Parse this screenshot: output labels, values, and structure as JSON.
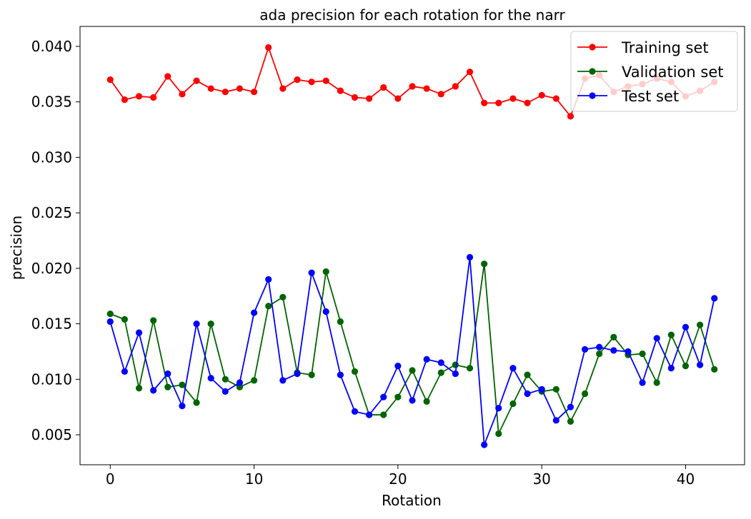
{
  "chart_data": {
    "type": "line",
    "title": "ada precision for each rotation for the narr",
    "xlabel": "Rotation",
    "ylabel": "precision",
    "xlim": [
      -2.1,
      44.1
    ],
    "ylim": [
      0.0023,
      0.0418
    ],
    "x_ticks": [
      0,
      10,
      20,
      30,
      40
    ],
    "x_tick_labels": [
      "0",
      "10",
      "20",
      "30",
      "40"
    ],
    "y_ticks": [
      0.005,
      0.01,
      0.015,
      0.02,
      0.025,
      0.03,
      0.035,
      0.04
    ],
    "y_tick_labels": [
      "0.005",
      "0.010",
      "0.015",
      "0.020",
      "0.025",
      "0.030",
      "0.035",
      "0.040"
    ],
    "grid": false,
    "legend_position": "top-right",
    "x": [
      0,
      1,
      2,
      3,
      4,
      5,
      6,
      7,
      8,
      9,
      10,
      11,
      12,
      13,
      14,
      15,
      16,
      17,
      18,
      19,
      20,
      21,
      22,
      23,
      24,
      25,
      26,
      27,
      28,
      29,
      30,
      31,
      32,
      33,
      34,
      35,
      36,
      37,
      38,
      39,
      40,
      41,
      42
    ],
    "series": [
      {
        "name": "Training set",
        "color": "#ff0000",
        "marker": "circle",
        "values": [
          0.037,
          0.0352,
          0.0355,
          0.0354,
          0.0373,
          0.0357,
          0.0369,
          0.0362,
          0.0359,
          0.0362,
          0.0359,
          0.0399,
          0.0362,
          0.037,
          0.0368,
          0.0369,
          0.036,
          0.0354,
          0.0353,
          0.0363,
          0.0353,
          0.0364,
          0.0362,
          0.0357,
          0.0364,
          0.0377,
          0.0349,
          0.0349,
          0.0353,
          0.0349,
          0.0356,
          0.0353,
          0.0337,
          0.0371,
          0.0374,
          0.0359,
          0.0364,
          0.0366,
          0.0371,
          0.0368,
          0.0355,
          0.036,
          0.0368
        ]
      },
      {
        "name": "Validation set",
        "color": "#006400",
        "marker": "circle",
        "values": [
          0.0159,
          0.0154,
          0.0092,
          0.0153,
          0.0093,
          0.0095,
          0.0079,
          0.015,
          0.01,
          0.0093,
          0.0099,
          0.0166,
          0.0174,
          0.0106,
          0.0104,
          0.0197,
          0.0152,
          0.0107,
          0.0068,
          0.0068,
          0.0084,
          0.0108,
          0.008,
          0.0106,
          0.0113,
          0.011,
          0.0204,
          0.0051,
          0.0078,
          0.0104,
          0.0089,
          0.0091,
          0.0062,
          0.0087,
          0.0123,
          0.0138,
          0.0122,
          0.0123,
          0.0097,
          0.014,
          0.0112,
          0.0149,
          0.0109
        ]
      },
      {
        "name": "Test set",
        "color": "#0000ff",
        "marker": "circle",
        "values": [
          0.0152,
          0.0107,
          0.0142,
          0.009,
          0.0105,
          0.0076,
          0.015,
          0.0101,
          0.0089,
          0.0097,
          0.016,
          0.019,
          0.0099,
          0.0105,
          0.0196,
          0.0161,
          0.0104,
          0.0071,
          0.0068,
          0.0084,
          0.0112,
          0.0081,
          0.0118,
          0.0115,
          0.0105,
          0.021,
          0.0041,
          0.0074,
          0.011,
          0.0087,
          0.0091,
          0.0063,
          0.0075,
          0.0127,
          0.0129,
          0.0126,
          0.0125,
          0.0097,
          0.0137,
          0.011,
          0.0147,
          0.0113,
          0.0173
        ]
      }
    ]
  }
}
